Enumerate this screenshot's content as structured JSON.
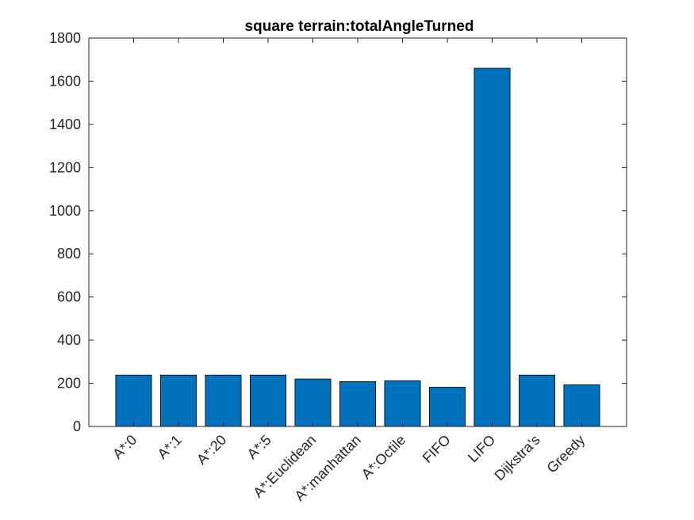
{
  "chart_data": {
    "type": "bar",
    "title": "square terrain:totalAngleTurned",
    "xlabel": "",
    "ylabel": "",
    "categories": [
      "A*:0",
      "A*:1",
      "A*:20",
      "A*:5",
      "A*:Euclidean",
      "A*:manhattan",
      "A*:Octile",
      "FIFO",
      "LIFO",
      "Dijkstra's",
      "Greedy"
    ],
    "values": [
      238,
      238,
      238,
      238,
      220,
      208,
      212,
      182,
      1660,
      238,
      193
    ],
    "ylim": [
      0,
      1800
    ],
    "yticks": [
      0,
      200,
      400,
      600,
      800,
      1000,
      1200,
      1400,
      1600,
      1800
    ],
    "bar_color": "#0072BD",
    "bar_edge_color": "#000000",
    "grid": false,
    "box": true
  }
}
